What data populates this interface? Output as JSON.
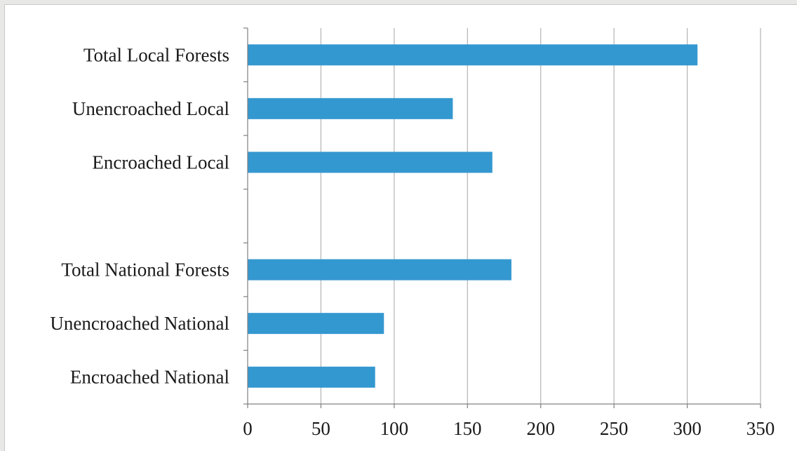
{
  "chart_data": {
    "type": "bar",
    "orientation": "horizontal",
    "title": "",
    "xlabel": "",
    "ylabel": "",
    "categories": [
      "Total Local Forests",
      "Unencroached Local",
      "Encroached Local",
      "",
      "Total National Forests",
      "Unencroached National",
      "Encroached National"
    ],
    "values": [
      307,
      140,
      167,
      null,
      180,
      93,
      87
    ],
    "xlim": [
      0,
      350
    ],
    "xticks": [
      0,
      50,
      100,
      150,
      200,
      250,
      300,
      350
    ],
    "grid": "vertical",
    "legend": "none",
    "colors": {
      "bar": "#3498d0",
      "grid": "#b4b4b4",
      "axis": "#808080"
    }
  }
}
